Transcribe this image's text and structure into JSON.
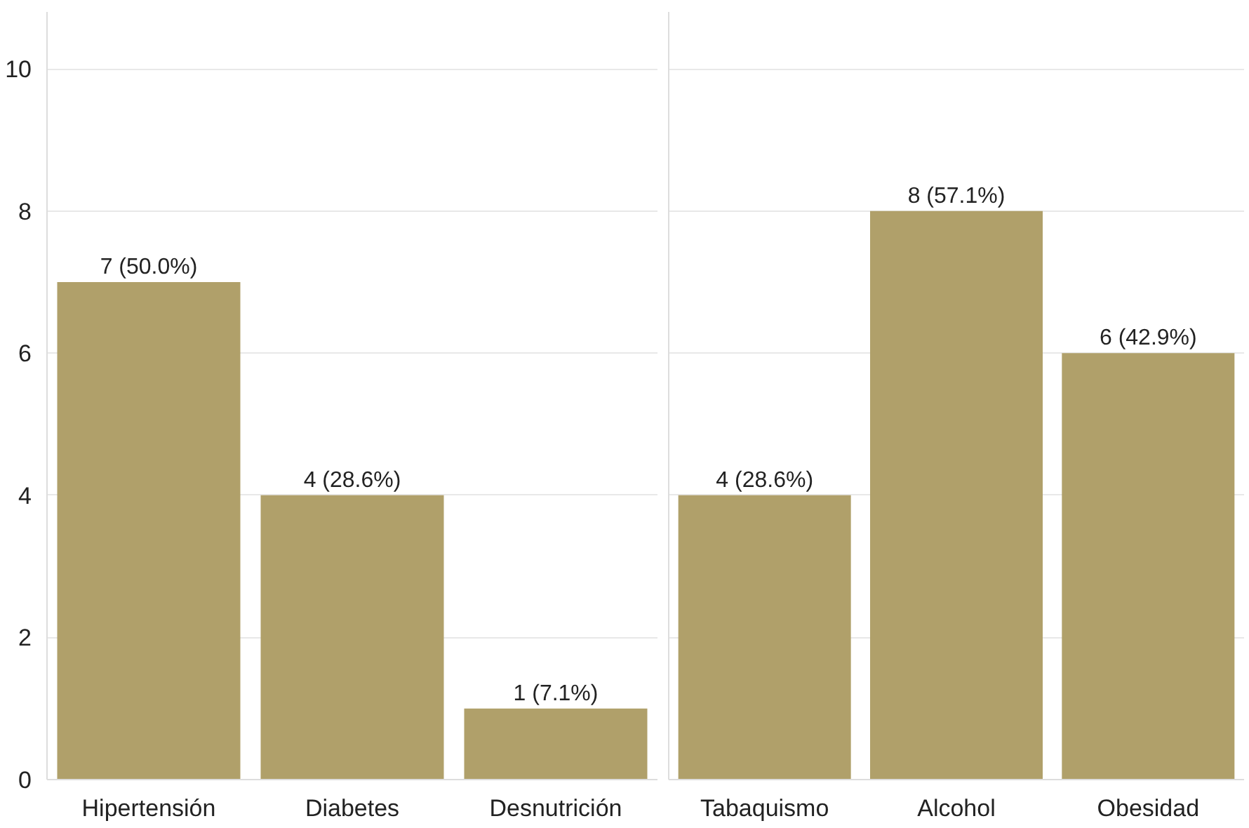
{
  "chart_data": [
    {
      "type": "bar",
      "categories": [
        "Hipertensión",
        "Diabetes",
        "Desnutrición"
      ],
      "values": [
        7,
        4,
        1
      ],
      "value_labels": [
        "7 (50.0%)",
        "4 (28.6%)",
        "1 (7.1%)"
      ],
      "color": "#b0a06a",
      "ylim": [
        0,
        10.8
      ],
      "yticks": [
        0,
        2,
        4,
        6,
        8,
        10
      ],
      "grid": "y"
    },
    {
      "type": "bar",
      "categories": [
        "Tabaquismo",
        "Alcohol",
        "Obesidad"
      ],
      "values": [
        4,
        8,
        6
      ],
      "value_labels": [
        "4 (28.6%)",
        "8 (57.1%)",
        "6 (42.9%)"
      ],
      "color": "#b0a06a",
      "ylim": [
        0,
        10.8
      ],
      "yticks": [
        0,
        2,
        4,
        6,
        8,
        10
      ],
      "grid": "y",
      "tick_labels": "x"
    }
  ]
}
